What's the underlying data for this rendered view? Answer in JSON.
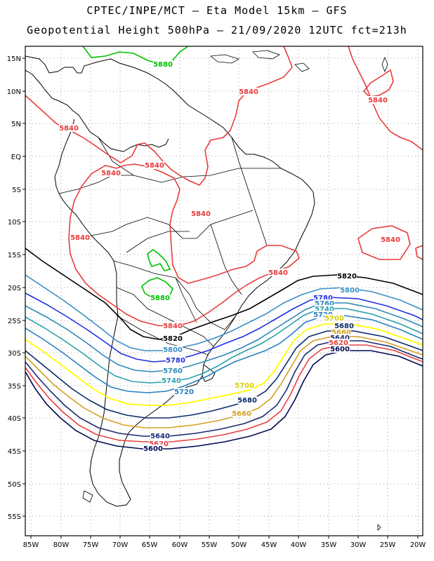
{
  "title": {
    "line1": "CPTEC/INPE/MCT –  Eta Model 15km – GFS",
    "line2": "Geopotential Height 500hPa – 21/09/2020 12UTC fct=213h"
  },
  "axes": {
    "lat_labels": [
      "15N",
      "10N",
      "5N",
      "EQ",
      "5S",
      "10S",
      "15S",
      "20S",
      "25S",
      "30S",
      "35S",
      "40S",
      "45S",
      "50S",
      "55S"
    ],
    "lon_labels": [
      "85W",
      "80W",
      "75W",
      "70W",
      "65W",
      "60W",
      "55W",
      "50W",
      "45W",
      "40W",
      "35W",
      "30W",
      "25W",
      "20W"
    ]
  },
  "map_data": {
    "variable": "500hPa geopotential height (gpm)",
    "region": {
      "lon_range": [
        -86,
        -20
      ],
      "lat_range": [
        -58,
        16
      ]
    },
    "grid": "dotted",
    "contours": [
      {
        "level": 5880,
        "color": "#00c000"
      },
      {
        "level": 5840,
        "color": "#e83c3c"
      },
      {
        "level": 5820,
        "color": "#000000"
      },
      {
        "level": 5800,
        "color": "#3a8fc8"
      },
      {
        "level": 5780,
        "color": "#2030e0"
      },
      {
        "level": 5760,
        "color": "#2e88b8"
      },
      {
        "level": 5740,
        "color": "#28a0a8"
      },
      {
        "level": 5720,
        "color": "#2880c0"
      },
      {
        "level": 5700,
        "color": "#ffff00"
      },
      {
        "level": 5680,
        "color": "#0a2a6a"
      },
      {
        "level": 5660,
        "color": "#d4a020"
      },
      {
        "level": 5640,
        "color": "#1a2a70"
      },
      {
        "level": 5620,
        "color": "#e84040"
      },
      {
        "level": 5600,
        "color": "#000a50"
      }
    ],
    "labels": [
      {
        "text": "5880",
        "color": "#00c000"
      },
      {
        "text": "5880",
        "color": "#00c000"
      },
      {
        "text": "5840",
        "color": "#e83c3c"
      },
      {
        "text": "5840",
        "color": "#e83c3c"
      },
      {
        "text": "5840",
        "color": "#e83c3c"
      },
      {
        "text": "5840",
        "color": "#e83c3c"
      },
      {
        "text": "5840",
        "color": "#e83c3c"
      },
      {
        "text": "5840",
        "color": "#e83c3c"
      },
      {
        "text": "5840",
        "color": "#e83c3c"
      },
      {
        "text": "5840",
        "color": "#e83c3c"
      },
      {
        "text": "5840",
        "color": "#e83c3c"
      },
      {
        "text": "5840",
        "color": "#e83c3c"
      },
      {
        "text": "5820",
        "color": "#000000"
      },
      {
        "text": "5820",
        "color": "#000000"
      },
      {
        "text": "5800",
        "color": "#3a8fc8"
      },
      {
        "text": "5800",
        "color": "#3a8fc8"
      },
      {
        "text": "5780",
        "color": "#2030e0"
      },
      {
        "text": "5780",
        "color": "#2030e0"
      },
      {
        "text": "5760",
        "color": "#2e88b8"
      },
      {
        "text": "5760",
        "color": "#2e88b8"
      },
      {
        "text": "5740",
        "color": "#28a0a8"
      },
      {
        "text": "5740",
        "color": "#28a0a8"
      },
      {
        "text": "5720",
        "color": "#2880c0"
      },
      {
        "text": "5720",
        "color": "#2880c0"
      },
      {
        "text": "5700",
        "color": "#d8d000"
      },
      {
        "text": "5700",
        "color": "#d8d000"
      },
      {
        "text": "5680",
        "color": "#0a2a6a"
      },
      {
        "text": "5680",
        "color": "#0a2a6a"
      },
      {
        "text": "5660",
        "color": "#d4a020"
      },
      {
        "text": "5660",
        "color": "#d4a020"
      },
      {
        "text": "5640",
        "color": "#1a2a70"
      },
      {
        "text": "5640",
        "color": "#1a2a70"
      },
      {
        "text": "5620",
        "color": "#e84040"
      },
      {
        "text": "5620",
        "color": "#e84040"
      },
      {
        "text": "5600",
        "color": "#000a50"
      },
      {
        "text": "5600",
        "color": "#000a50"
      }
    ]
  }
}
